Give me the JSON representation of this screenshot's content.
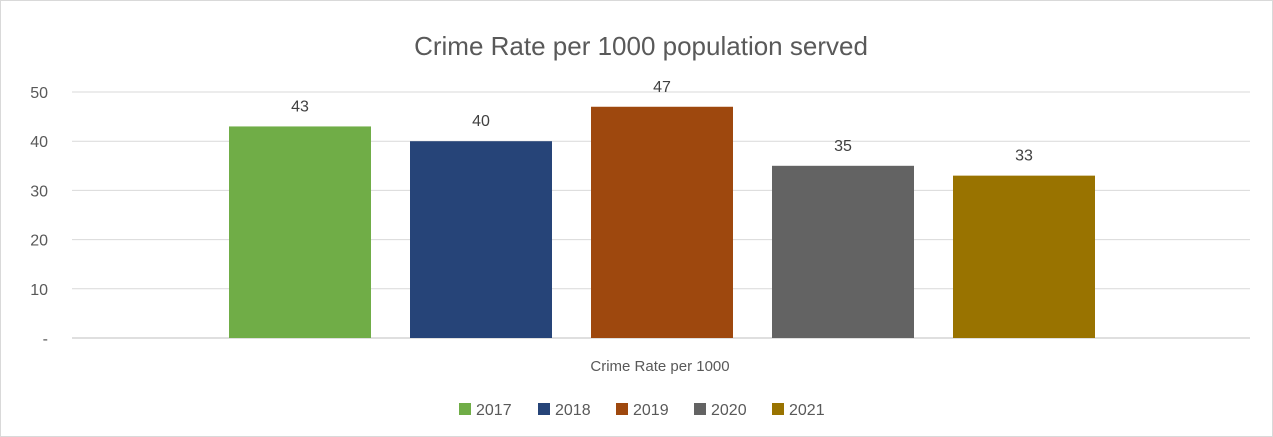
{
  "chart_data": {
    "type": "bar",
    "title": "Crime Rate per 1000 population served",
    "xlabel": "",
    "ylabel": "",
    "categories": [
      "Crime Rate per 1000"
    ],
    "series": [
      {
        "name": "2017",
        "values": [
          43
        ],
        "color": "#70ad47"
      },
      {
        "name": "2018",
        "values": [
          40
        ],
        "color": "#264478"
      },
      {
        "name": "2019",
        "values": [
          47
        ],
        "color": "#9e480e"
      },
      {
        "name": "2020",
        "values": [
          35
        ],
        "color": "#636363"
      },
      {
        "name": "2021",
        "values": [
          33
        ],
        "color": "#997300"
      }
    ],
    "ylim": [
      0,
      50
    ],
    "yticks": [
      0,
      10,
      20,
      30,
      40,
      50
    ],
    "ytick_labels": [
      "-",
      "10",
      "20",
      "30",
      "40",
      "50"
    ],
    "data_labels": [
      "43",
      "40",
      "47",
      "35",
      "33"
    ],
    "grid": true,
    "legend": "bottom"
  }
}
